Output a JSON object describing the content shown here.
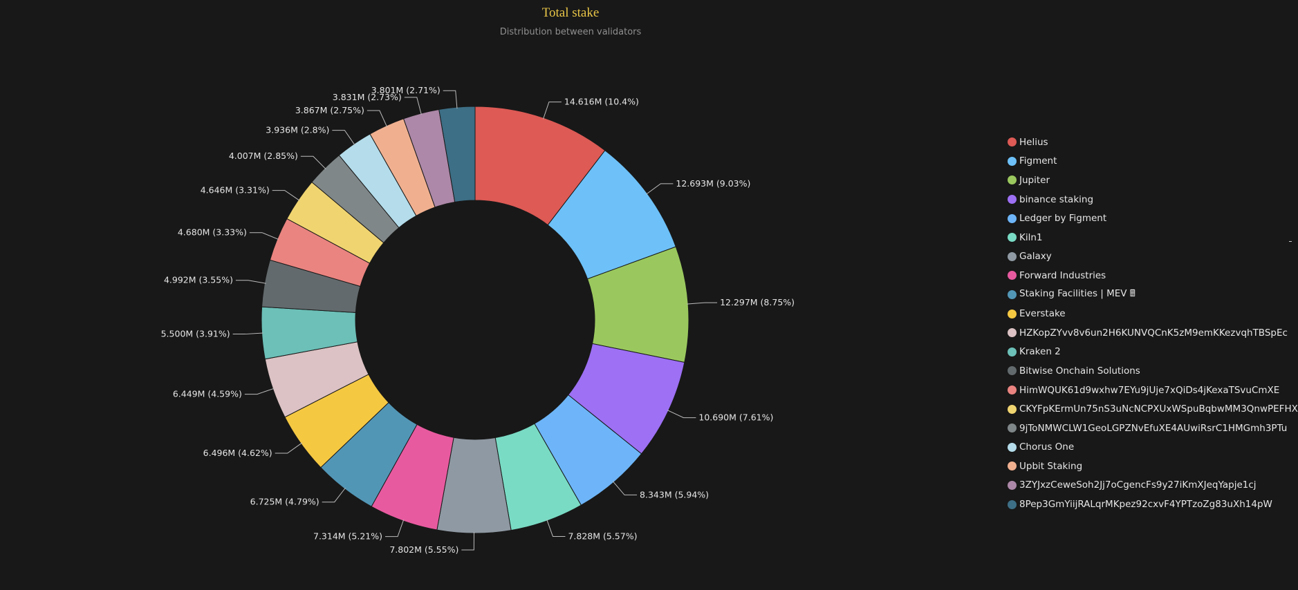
{
  "chart_data": {
    "type": "pie",
    "variant": "donut",
    "title": "Total stake",
    "subtitle": "Distribution between validators",
    "legend_position": "right",
    "unit": "M",
    "series": [
      {
        "name": "Helius",
        "value": 14.616,
        "label": "14.616M (10.4%)",
        "color": "#dd5a55"
      },
      {
        "name": "Figment",
        "value": 12.693,
        "label": "12.693M (9.03%)",
        "color": "#6dc1f8"
      },
      {
        "name": "Jupiter",
        "value": 12.297,
        "label": "12.297M (8.75%)",
        "color": "#9ac85e"
      },
      {
        "name": "binance staking",
        "value": 10.69,
        "label": "10.690M (7.61%)",
        "color": "#9d70f4"
      },
      {
        "name": "Ledger by Figment",
        "value": 8.343,
        "label": "8.343M (5.94%)",
        "color": "#6db5f8"
      },
      {
        "name": "Kiln1",
        "value": 7.828,
        "label": "7.828M (5.57%)",
        "color": "#79dbc4"
      },
      {
        "name": "Galaxy",
        "value": 7.802,
        "label": "7.802M (5.55%)",
        "color": "#8f99a3"
      },
      {
        "name": "Forward Industries",
        "value": 7.314,
        "label": "7.314M (5.21%)",
        "color": "#e85aa0"
      },
      {
        "name": "Staking Facilities | MEV 🖩",
        "value": 6.725,
        "label": "6.725M (4.79%)",
        "color": "#5296b6"
      },
      {
        "name": "Everstake",
        "value": 6.496,
        "label": "6.496M (4.62%)",
        "color": "#f5c842"
      },
      {
        "name": "HZKopZYvv8v6un2H6KUNVQCnK5zM9emKKezvqhTBSpEc",
        "value": 6.449,
        "label": "6.449M (4.59%)",
        "color": "#dcc2c4"
      },
      {
        "name": "Kraken 2",
        "value": 5.5,
        "label": "5.500M (3.91%)",
        "color": "#6cc0b8"
      },
      {
        "name": "Bitwise Onchain Solutions",
        "value": 4.992,
        "label": "4.992M (3.55%)",
        "color": "#636a6d"
      },
      {
        "name": "HimWQUK61d9wxhw7EYu9jUje7xQiDs4jKexaTSvuCmXE",
        "value": 4.68,
        "label": "4.680M (3.33%)",
        "color": "#ea8480"
      },
      {
        "name": "CKYFpKErmUn75nS3uNcNCPXUxWSpuBqbwMM3QnwPEFHX",
        "value": 4.646,
        "label": "4.646M (3.31%)",
        "color": "#f0d470"
      },
      {
        "name": "9jToNMWCLW1GeoLGPZNvEfuXE4AUwiRsrC1HMGmh3PTu",
        "value": 4.007,
        "label": "4.007M (2.85%)",
        "color": "#808789"
      },
      {
        "name": "Chorus One",
        "value": 3.936,
        "label": "3.936M (2.8%)",
        "color": "#b4dcea"
      },
      {
        "name": "Upbit Staking",
        "value": 3.867,
        "label": "3.867M (2.75%)",
        "color": "#f0b090"
      },
      {
        "name": "3ZYJxzCeweSoh2Jj7oCgencFs9y27iKmXJeqYapje1cj",
        "value": 3.831,
        "label": "3.831M (2.73%)",
        "color": "#ad88a8"
      },
      {
        "name": "8Pep3GmYiijRALqrMKpez92cxvF4YPTzoZg83uXh14pW",
        "value": 3.801,
        "label": "3.801M (2.71%)",
        "color": "#3d6f86"
      }
    ]
  }
}
